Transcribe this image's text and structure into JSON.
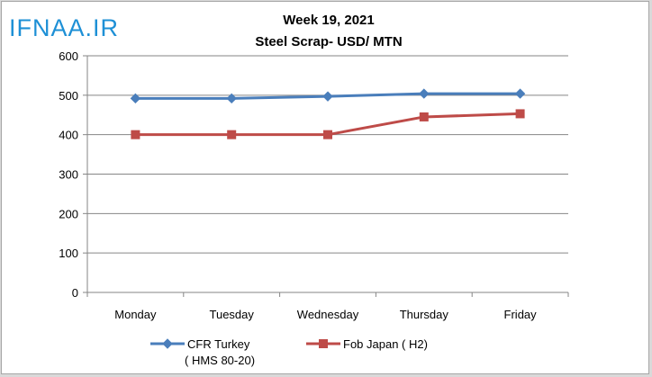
{
  "watermark": "IFNAA.IR",
  "chart_data": {
    "type": "line",
    "title": "Week 19, 2021",
    "subtitle": "Steel Scrap- USD/ MTN",
    "categories": [
      "Monday",
      "Tuesday",
      "Wednesday",
      "Thursday",
      "Friday"
    ],
    "ylim": [
      0,
      600
    ],
    "yticks": [
      "0",
      "100",
      "200",
      "300",
      "400",
      "500",
      "600"
    ],
    "grid": true,
    "legend_position": "bottom",
    "series": [
      {
        "name_lines": [
          "CFR Turkey",
          "( HMS 80-20)"
        ],
        "marker": "diamond",
        "color": "#4a7ebb",
        "values": [
          492,
          492,
          497,
          504,
          504
        ]
      },
      {
        "name_lines": [
          "Fob Japan ( H2)"
        ],
        "marker": "square",
        "color": "#be4b48",
        "values": [
          400,
          400,
          400,
          445,
          453
        ]
      }
    ]
  }
}
